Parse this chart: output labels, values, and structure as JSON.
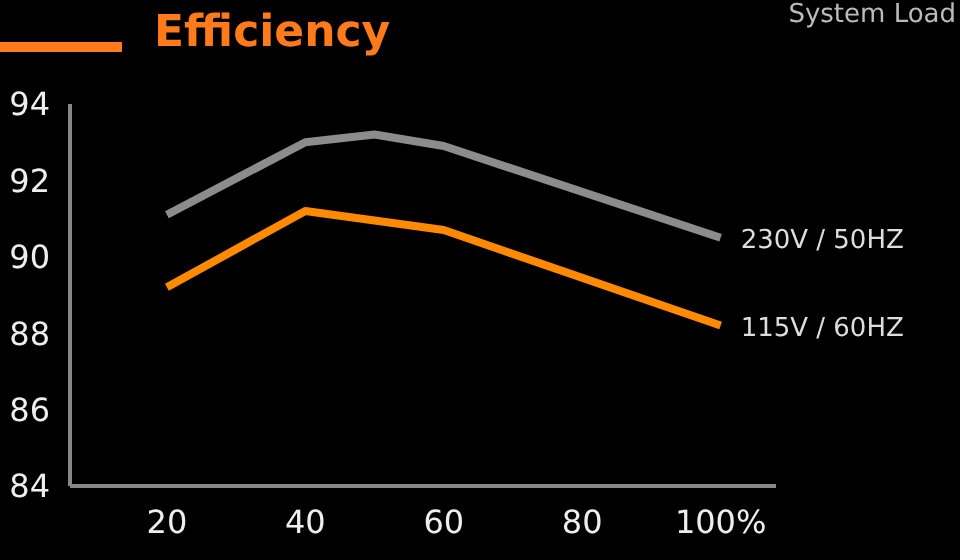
{
  "chart_data": {
    "type": "line",
    "title": "Efficiency",
    "xlabel": "System Load",
    "xlim": [
      6,
      108
    ],
    "xticks": [
      20,
      40,
      60,
      80,
      {
        "value": 100,
        "label": "100%"
      }
    ],
    "ylim": [
      84,
      94
    ],
    "yticks": [
      84,
      86,
      88,
      90,
      92,
      94
    ],
    "series": [
      {
        "name": "230V / 50HZ",
        "color": "#8c8c8c",
        "x": [
          20,
          40,
          50,
          60,
          100
        ],
        "values": [
          91.1,
          93.0,
          93.2,
          92.9,
          90.5
        ]
      },
      {
        "name": "115V / 60HZ",
        "color": "#ff8a00",
        "x": [
          20,
          40,
          60,
          100
        ],
        "values": [
          89.2,
          91.2,
          90.7,
          88.2
        ]
      }
    ],
    "grid": false,
    "legend": false,
    "marker": "none",
    "line_style": "solid"
  }
}
